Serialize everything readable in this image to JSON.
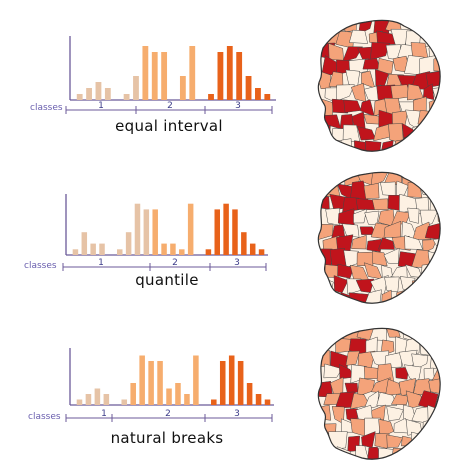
{
  "colors": {
    "class_1": "#e6c3a6",
    "class_2": "#f6ad6e",
    "class_3": "#e8621a",
    "axis": "#6b5a99",
    "map_light": "#fdf1e3",
    "map_mid": "#f4a37a",
    "map_dark": "#c0141c",
    "map_border": "#444444"
  },
  "chart_data": [
    {
      "type": "bar",
      "title": "equal interval",
      "classes_label": "classes",
      "class_labels": [
        "1",
        "2",
        "3"
      ],
      "values": [
        1,
        2,
        3,
        2,
        0,
        1,
        4,
        9,
        8,
        8,
        0,
        4,
        9,
        0,
        1,
        8,
        9,
        8,
        4,
        2,
        1
      ],
      "class_of_bar": [
        1,
        1,
        1,
        1,
        1,
        1,
        1,
        2,
        2,
        2,
        2,
        2,
        2,
        2,
        3,
        3,
        3,
        3,
        3,
        3,
        3
      ],
      "ylim": [
        0,
        10
      ]
    },
    {
      "type": "bar",
      "title": "quantile",
      "classes_label": "classes",
      "class_labels": [
        "1",
        "2",
        "3"
      ],
      "values": [
        1,
        4,
        2,
        2,
        0,
        1,
        4,
        9,
        8,
        8,
        2,
        2,
        1,
        9,
        0,
        1,
        8,
        9,
        8,
        4,
        2,
        1
      ],
      "class_of_bar": [
        1,
        1,
        1,
        1,
        1,
        1,
        1,
        1,
        1,
        2,
        2,
        2,
        2,
        2,
        2,
        3,
        3,
        3,
        3,
        3,
        3,
        3
      ],
      "ylim": [
        0,
        10
      ]
    },
    {
      "type": "bar",
      "title": "natural breaks",
      "classes_label": "classes",
      "class_labels": [
        "1",
        "2",
        "3"
      ],
      "values": [
        1,
        2,
        3,
        2,
        0,
        1,
        4,
        9,
        8,
        8,
        3,
        4,
        2,
        9,
        0,
        1,
        8,
        9,
        8,
        4,
        2,
        1
      ],
      "class_of_bar": [
        1,
        1,
        1,
        1,
        1,
        1,
        2,
        2,
        2,
        2,
        2,
        2,
        2,
        2,
        2,
        3,
        3,
        3,
        3,
        3,
        3,
        3
      ],
      "ylim": [
        0,
        10
      ]
    }
  ]
}
